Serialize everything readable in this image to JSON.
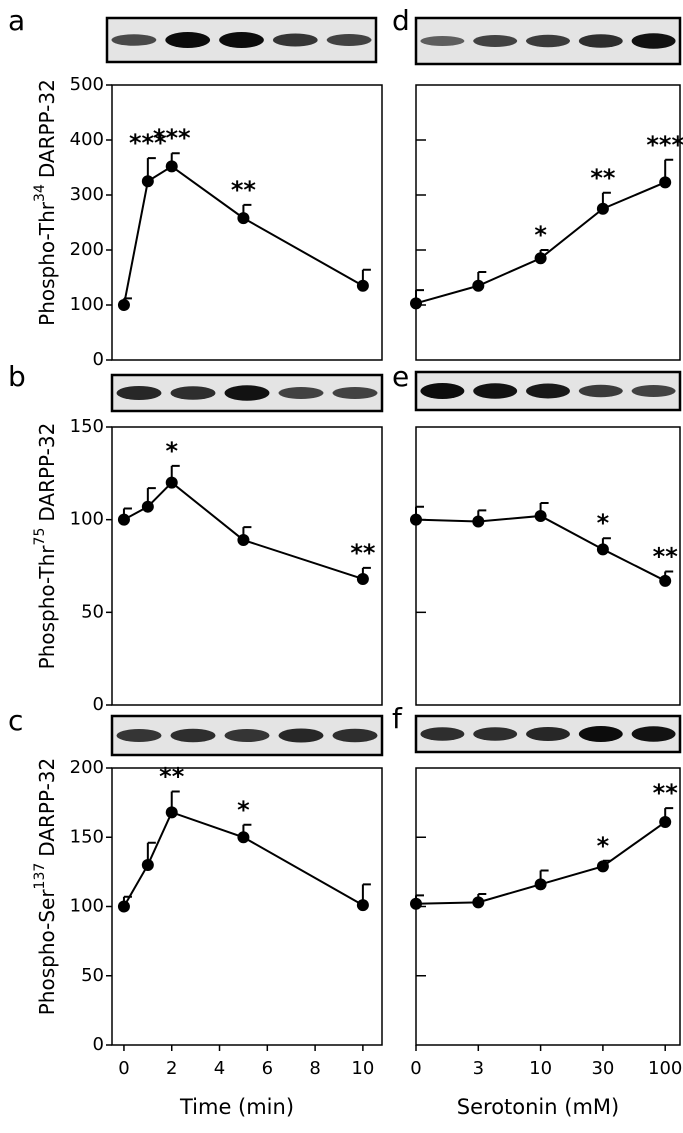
{
  "chart_data": [
    {
      "type": "line",
      "panel_label": "a",
      "ylabel": [
        "Phospho-Thr",
        "34",
        "DARPP-32"
      ],
      "x": [
        0,
        1,
        2,
        5,
        10
      ],
      "xlim": [
        -0.5,
        10.8
      ],
      "values": [
        100,
        325,
        352,
        258,
        135
      ],
      "errors": [
        12,
        42,
        24,
        24,
        29
      ],
      "ylim": [
        0,
        500
      ],
      "yticks": [
        0,
        100,
        200,
        300,
        400,
        500
      ],
      "color": "#000000",
      "annotations": [
        {
          "at": 1,
          "text": "***"
        },
        {
          "at": 2,
          "text": "***"
        },
        {
          "at": 3,
          "text": "**"
        }
      ]
    },
    {
      "type": "line",
      "panel_label": "b",
      "ylabel": [
        "Phospho-Thr",
        "75",
        "DARPP-32"
      ],
      "x": [
        0,
        1,
        2,
        5,
        10
      ],
      "xlim": [
        -0.5,
        10.8
      ],
      "values": [
        100,
        107,
        120,
        89,
        68
      ],
      "errors": [
        6,
        10,
        9,
        7,
        6
      ],
      "ylim": [
        0,
        150
      ],
      "yticks": [
        0,
        50,
        100,
        150
      ],
      "color": "#000000",
      "annotations": [
        {
          "at": 2,
          "text": "*"
        },
        {
          "at": 4,
          "text": "**"
        }
      ]
    },
    {
      "type": "line",
      "panel_label": "c",
      "ylabel": [
        "Phospho-Ser",
        "137",
        "DARPP-32"
      ],
      "xlabel": "Time (min)",
      "x": [
        0,
        1,
        2,
        5,
        10
      ],
      "xlim": [
        -0.5,
        10.8
      ],
      "xticks": [
        0,
        2,
        4,
        6,
        8,
        10
      ],
      "values": [
        100,
        130,
        168,
        150,
        101
      ],
      "errors": [
        7,
        16,
        15,
        9,
        15
      ],
      "ylim": [
        0,
        200
      ],
      "yticks": [
        0,
        50,
        100,
        150,
        200
      ],
      "color": "#000000",
      "annotations": [
        {
          "at": 2,
          "text": "**"
        },
        {
          "at": 3,
          "text": "*"
        }
      ]
    },
    {
      "type": "line",
      "panel_label": "d",
      "categories": [
        null,
        null,
        null,
        null,
        null
      ],
      "values": [
        103,
        135,
        185,
        275,
        323
      ],
      "errors": [
        24,
        25,
        15,
        29,
        41
      ],
      "ylim": [
        0,
        500
      ],
      "yticks": [
        100,
        200,
        300,
        400
      ],
      "tick_labels": false,
      "color": "#000000",
      "annotations": [
        {
          "at": 2,
          "text": "*"
        },
        {
          "at": 3,
          "text": "**"
        },
        {
          "at": 4,
          "text": "***"
        }
      ]
    },
    {
      "type": "line",
      "panel_label": "e",
      "categories": [
        null,
        null,
        null,
        null,
        null
      ],
      "values": [
        100,
        99,
        102,
        84,
        67
      ],
      "errors": [
        7,
        6,
        7,
        6,
        5
      ],
      "ylim": [
        0,
        150
      ],
      "yticks": [
        50,
        100
      ],
      "tick_labels": false,
      "color": "#000000",
      "annotations": [
        {
          "at": 3,
          "text": "*"
        },
        {
          "at": 4,
          "text": "**"
        }
      ]
    },
    {
      "type": "line",
      "panel_label": "f",
      "categories": [
        "0",
        "3",
        "10",
        "30",
        "100"
      ],
      "xlabel": "Serotonin (mM)",
      "values": [
        102,
        103,
        116,
        129,
        161
      ],
      "errors": [
        6,
        6,
        10,
        4,
        10
      ],
      "ylim": [
        0,
        200
      ],
      "yticks": [
        50,
        100,
        150
      ],
      "tick_labels": false,
      "color": "#000000",
      "annotations": [
        {
          "at": 3,
          "text": "*"
        },
        {
          "at": 4,
          "text": "**"
        }
      ]
    }
  ]
}
